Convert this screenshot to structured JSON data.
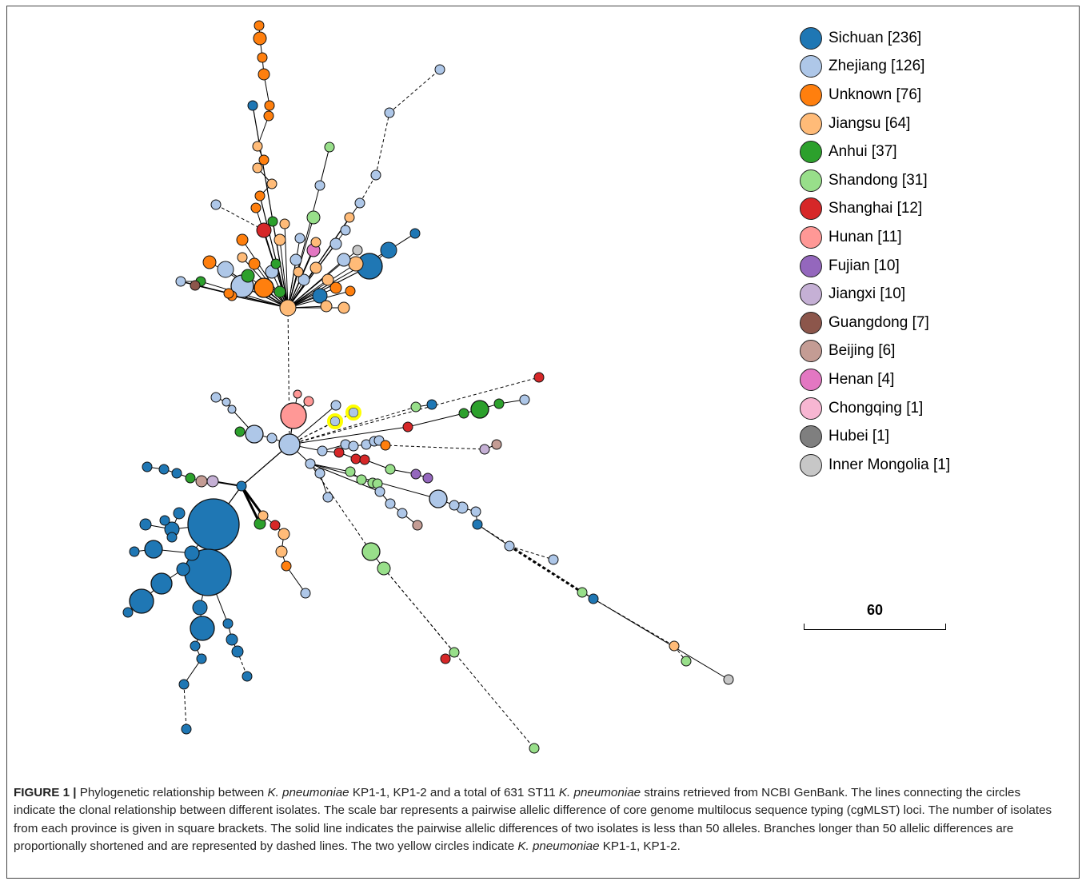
{
  "legend": {
    "items": [
      {
        "label": "Sichuan [236]",
        "color": "#1f77b4"
      },
      {
        "label": "Zhejiang [126]",
        "color": "#aec7e8"
      },
      {
        "label": "Unknown [76]",
        "color": "#ff7f0e"
      },
      {
        "label": "Jiangsu [64]",
        "color": "#ffbb78"
      },
      {
        "label": "Anhui [37]",
        "color": "#2ca02c"
      },
      {
        "label": "Shandong [31]",
        "color": "#98df8a"
      },
      {
        "label": "Shanghai [12]",
        "color": "#d62728"
      },
      {
        "label": "Hunan [11]",
        "color": "#ff9896"
      },
      {
        "label": "Fujian [10]",
        "color": "#9467bd"
      },
      {
        "label": "Jiangxi [10]",
        "color": "#c5b0d5"
      },
      {
        "label": "Guangdong [7]",
        "color": "#8c564b"
      },
      {
        "label": "Beijing [6]",
        "color": "#c49c94"
      },
      {
        "label": "Henan [4]",
        "color": "#e377c2"
      },
      {
        "label": "Chongqing [1]",
        "color": "#f7b6d2"
      },
      {
        "label": "Hubei [1]",
        "color": "#7f7f7f"
      },
      {
        "label": "Inner Mongolia [1]",
        "color": "#c7c7c7"
      }
    ]
  },
  "scale_bar": {
    "label": "60"
  },
  "highlight_color": "#ffff00",
  "caption": {
    "lead": "FIGURE 1 |",
    "part1": " Phylogenetic relationship between ",
    "italic1": "K. pneumoniae",
    "part2": " KP1-1, KP1-2 and a total of 631 ST11 ",
    "italic2": "K. pneumoniae",
    "part3": " strains retrieved from NCBI GenBank. The lines connecting the circles indicate the clonal relationship between different isolates. The scale bar represents a pairwise allelic difference of core genome multilocus sequence typing (cgMLST) loci. The number of isolates from each province is given in square brackets. The solid line indicates the pairwise allelic differences of two isolates is less than 50 alleles. Branches longer than 50 allelic differences are proportionally shortened and are represented by dashed lines. The two yellow circles indicate ",
    "italic3": "K. pneumoniae",
    "part4": " KP1-1, KP1-2."
  }
}
